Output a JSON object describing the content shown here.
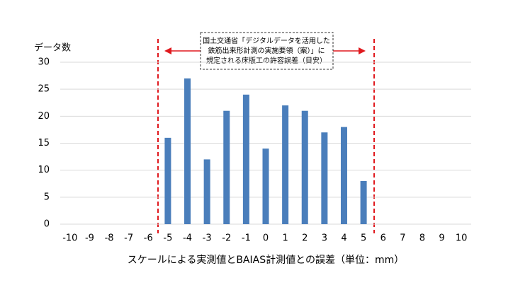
{
  "chart_data": {
    "type": "bar",
    "y_label": "データ数",
    "x_label": "スケールによる実測値とBAIAS計測値との誤差（単位：mm）",
    "annotation": [
      "国土交通省「デジタルデータを活用した",
      "鉄筋出来形計測の実施要領（案）」に",
      "規定される床版工の許容誤差（目安）"
    ],
    "categories": [
      "-10",
      "-9",
      "-8",
      "-7",
      "-6",
      "-5",
      "-4",
      "-3",
      "-2",
      "-1",
      "0",
      "1",
      "2",
      "3",
      "4",
      "5",
      "6",
      "7",
      "8",
      "9",
      "10"
    ],
    "values": [
      0,
      0,
      0,
      0,
      0,
      16,
      27,
      12,
      21,
      24,
      14,
      22,
      21,
      17,
      18,
      8,
      0,
      0,
      0,
      0,
      0
    ],
    "color": "#4a7ebb",
    "ylim": [
      0,
      30
    ],
    "yticks": [
      0,
      5,
      10,
      15,
      20,
      25,
      30
    ],
    "grid": true,
    "limit_color": "#e0191e"
  }
}
